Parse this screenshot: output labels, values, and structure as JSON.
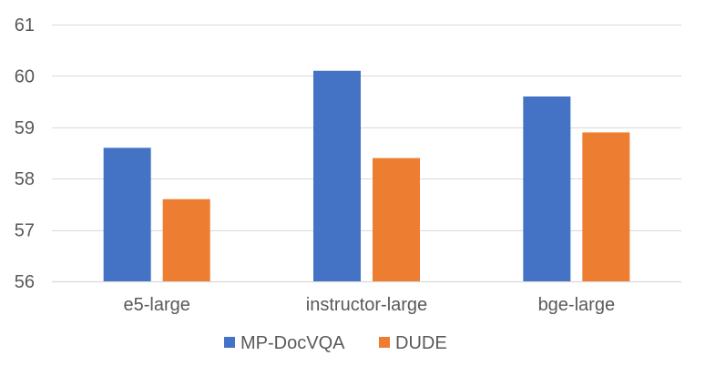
{
  "chart_data": {
    "type": "bar",
    "categories": [
      "e5-large",
      "instructor-large",
      "bge-large"
    ],
    "series": [
      {
        "name": "MP-DocVQA",
        "values": [
          58.6,
          60.1,
          59.6
        ],
        "color": "#4472c4"
      },
      {
        "name": "DUDE",
        "values": [
          57.6,
          58.4,
          58.9
        ],
        "color": "#ed7d31"
      }
    ],
    "yticks": [
      56,
      57,
      58,
      59,
      60,
      61
    ],
    "ylim": [
      56,
      61
    ],
    "grid": true,
    "legend_position": "bottom",
    "title": "",
    "xlabel": "",
    "ylabel": ""
  }
}
